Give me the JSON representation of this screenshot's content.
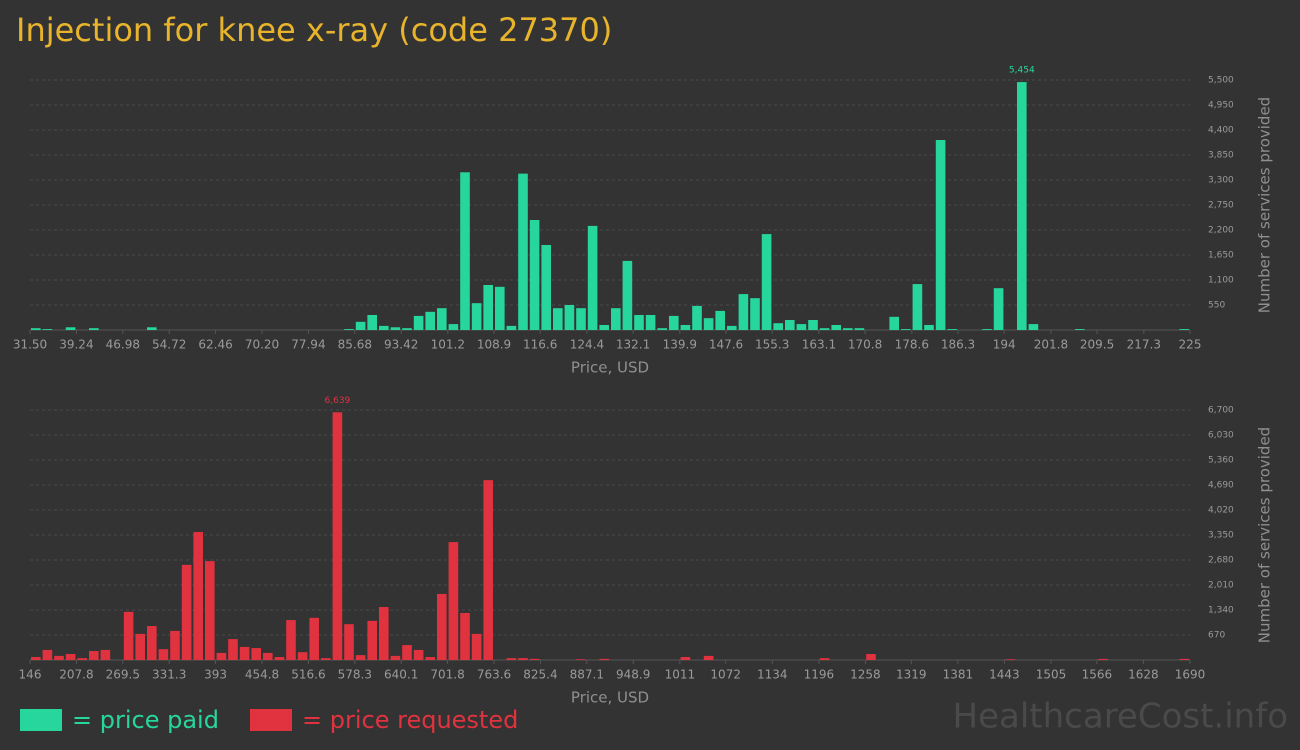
{
  "title": "Injection for knee x-ray (code 27370)",
  "watermark": "HealthcareCost.info",
  "chart_data": [
    {
      "type": "histogram",
      "x_label": "Price, USD",
      "y_label": "Number of services provided",
      "grid": true,
      "bins": [
        31.5,
        33.435,
        35.37,
        37.305,
        39.24,
        41.175,
        43.11,
        45.045,
        46.98,
        48.915,
        50.85,
        52.785,
        54.72,
        56.655,
        58.59,
        60.525,
        62.46,
        64.395,
        66.33,
        68.265,
        70.2,
        72.135,
        74.07,
        76.005,
        77.94,
        79.875,
        81.81,
        83.745,
        85.68,
        87.615,
        89.55,
        91.485,
        93.42,
        95.355,
        97.29,
        99.225,
        101.16,
        103.095,
        105.03,
        106.965,
        108.9,
        110.835,
        112.77,
        114.705,
        116.64,
        118.575,
        120.51,
        122.445,
        124.38,
        126.315,
        128.25,
        130.185,
        132.12,
        134.055,
        135.99,
        137.925,
        139.86,
        141.795,
        143.73,
        145.665,
        147.6,
        149.535,
        151.47,
        153.405,
        155.34,
        157.275,
        159.21,
        161.145,
        163.08,
        165.015,
        166.95,
        168.885,
        170.82,
        172.755,
        174.69,
        176.625,
        178.56,
        180.495,
        182.43,
        184.365,
        186.3,
        188.235,
        190.17,
        192.105,
        194.04,
        195.975,
        197.91,
        199.845,
        201.78,
        203.715,
        205.65,
        207.585,
        209.52,
        211.455,
        213.39,
        215.325,
        217.26,
        219.195,
        221.13,
        223.065,
        225
      ],
      "xlim": [
        31.5,
        225
      ],
      "xticks": [
        {
          "value": 31.5,
          "label": "31.50"
        },
        39.24,
        46.98,
        54.72,
        62.46,
        {
          "value": 70.2,
          "label": "70.20"
        },
        77.94,
        85.68,
        93.42,
        101.2,
        108.9,
        116.6,
        124.4,
        132.1,
        139.9,
        147.6,
        155.3,
        163.1,
        170.8,
        178.6,
        186.3,
        194,
        201.8,
        209.5,
        217.3,
        225
      ],
      "ylim": [
        0,
        5500
      ],
      "yticks": [
        550,
        {
          "value": 1100,
          "label": "1,100"
        },
        {
          "value": 1650,
          "label": "1,650"
        },
        {
          "value": 2200,
          "label": "2,200"
        },
        {
          "value": 2750,
          "label": "2,750"
        },
        {
          "value": 3300,
          "label": "3,300"
        },
        {
          "value": 3850,
          "label": "3,850"
        },
        {
          "value": 4400,
          "label": "4,400"
        },
        {
          "value": 4950,
          "label": "4,950"
        },
        {
          "value": 5500,
          "label": "5,500"
        }
      ],
      "series": [
        {
          "name": "= price paid",
          "color": "#27d69d",
          "values": [
            40,
            20,
            0,
            60,
            0,
            40,
            0,
            0,
            0,
            0,
            60,
            0,
            0,
            0,
            0,
            0,
            0,
            0,
            0,
            0,
            0,
            0,
            0,
            0,
            0,
            0,
            0,
            20,
            180,
            330,
            90,
            60,
            40,
            310,
            400,
            480,
            130,
            3470,
            590,
            990,
            950,
            90,
            3440,
            2420,
            1870,
            480,
            550,
            480,
            2290,
            110,
            480,
            1520,
            330,
            330,
            40,
            310,
            110,
            530,
            260,
            420,
            90,
            790,
            700,
            2110,
            150,
            220,
            130,
            220,
            40,
            110,
            40,
            40,
            0,
            0,
            290,
            20,
            1010,
            110,
            4180,
            20,
            0,
            0,
            20,
            920,
            0,
            5454,
            130,
            0,
            0,
            0,
            20,
            0,
            0,
            0,
            0,
            0,
            0,
            0,
            0,
            20
          ],
          "value_labels": [
            null,
            null,
            null,
            null,
            null,
            null,
            null,
            null,
            null,
            null,
            null,
            null,
            null,
            null,
            null,
            null,
            null,
            null,
            null,
            null,
            null,
            null,
            null,
            null,
            null,
            null,
            null,
            null,
            null,
            null,
            null,
            null,
            null,
            null,
            null,
            null,
            null,
            null,
            null,
            null,
            null,
            null,
            null,
            null,
            null,
            null,
            null,
            null,
            null,
            null,
            null,
            null,
            null,
            null,
            null,
            null,
            null,
            null,
            null,
            null,
            null,
            null,
            null,
            null,
            null,
            null,
            null,
            null,
            null,
            null,
            null,
            null,
            null,
            null,
            null,
            null,
            null,
            null,
            null,
            null,
            null,
            null,
            null,
            null,
            null,
            "5,454",
            null,
            null,
            null,
            null,
            null,
            null,
            null,
            null,
            null,
            null,
            null,
            null,
            null,
            null
          ]
        }
      ]
    },
    {
      "type": "histogram",
      "x_label": "Price, USD",
      "y_label": "Number of services provided",
      "grid": true,
      "bins": [
        146,
        161.44,
        176.88,
        192.32,
        207.76,
        223.2,
        238.64,
        254.08,
        269.52,
        284.96,
        300.4,
        315.84,
        331.28,
        346.72,
        362.16,
        377.6,
        393.04,
        408.48,
        423.92,
        439.36,
        454.8,
        470.24,
        485.68,
        501.12,
        516.56,
        532,
        547.44,
        562.88,
        578.32,
        593.76,
        609.2,
        624.64,
        640.08,
        655.52,
        670.96,
        686.4,
        701.84,
        717.28,
        732.72,
        748.16,
        763.6,
        779.04,
        794.48,
        809.92,
        825.36,
        840.8,
        856.24,
        871.68,
        887.12,
        902.56,
        918,
        933.44,
        948.88,
        964.32,
        979.76,
        995.2,
        1010.64,
        1026.08,
        1041.52,
        1056.96,
        1072.4,
        1087.84,
        1103.28,
        1118.72,
        1134.16,
        1149.6,
        1165.04,
        1180.48,
        1195.92,
        1211.36,
        1226.8,
        1242.24,
        1257.68,
        1273.12,
        1288.56,
        1304,
        1319.44,
        1334.88,
        1350.32,
        1365.76,
        1381.2,
        1396.64,
        1412.08,
        1427.52,
        1442.96,
        1458.4,
        1473.84,
        1489.28,
        1504.72,
        1520.16,
        1535.6,
        1551.04,
        1566.48,
        1581.92,
        1597.36,
        1612.8,
        1628.24,
        1643.68,
        1659.12,
        1674.56,
        1690
      ],
      "xlim": [
        146,
        1690
      ],
      "xticks": [
        146,
        207.8,
        269.5,
        331.3,
        393,
        454.8,
        516.6,
        578.3,
        640.1,
        701.8,
        763.6,
        825.4,
        887.1,
        948.9,
        1011,
        1072,
        1134,
        1196,
        1258,
        1319,
        1381,
        1443,
        1505,
        1566,
        1628,
        1690
      ],
      "ylim": [
        0,
        6700
      ],
      "yticks": [
        670,
        {
          "value": 1340,
          "label": "1,340"
        },
        {
          "value": 2010,
          "label": "2,010"
        },
        {
          "value": 2680,
          "label": "2,680"
        },
        {
          "value": 3350,
          "label": "3,350"
        },
        {
          "value": 4020,
          "label": "4,020"
        },
        {
          "value": 4690,
          "label": "4,690"
        },
        {
          "value": 5360,
          "label": "5,360"
        },
        {
          "value": 6030,
          "label": "6,030"
        },
        {
          "value": 6700,
          "label": "6,700"
        }
      ],
      "series": [
        {
          "name": "= price requested",
          "color": "#e0323f",
          "values": [
            80,
            270,
            110,
            160,
            50,
            240,
            270,
            0,
            1290,
            700,
            910,
            290,
            780,
            2550,
            3430,
            2650,
            190,
            560,
            350,
            320,
            190,
            80,
            1070,
            210,
            1130,
            50,
            6639,
            960,
            130,
            1050,
            1420,
            110,
            400,
            270,
            80,
            1770,
            3160,
            1260,
            700,
            4820,
            0,
            50,
            50,
            30,
            0,
            0,
            0,
            20,
            0,
            30,
            0,
            0,
            0,
            0,
            0,
            0,
            80,
            0,
            110,
            0,
            0,
            0,
            0,
            0,
            0,
            0,
            0,
            0,
            50,
            0,
            0,
            0,
            160,
            0,
            0,
            0,
            0,
            0,
            0,
            0,
            0,
            0,
            0,
            0,
            20,
            0,
            0,
            0,
            0,
            0,
            0,
            0,
            30,
            0,
            0,
            0,
            0,
            0,
            0,
            30
          ],
          "value_labels": [
            null,
            null,
            null,
            null,
            null,
            null,
            null,
            null,
            null,
            null,
            null,
            null,
            null,
            null,
            null,
            null,
            null,
            null,
            null,
            null,
            null,
            null,
            null,
            null,
            null,
            null,
            "6,639",
            null,
            null,
            null,
            null,
            null,
            null,
            null,
            null,
            null,
            null,
            null,
            null,
            null,
            null,
            null,
            null,
            null,
            null,
            null,
            null,
            null,
            null,
            null,
            null,
            null,
            null,
            null,
            null,
            null,
            null,
            null,
            null,
            null,
            null,
            null,
            null,
            null,
            null,
            null,
            null,
            null,
            null,
            null,
            null,
            null,
            null,
            null,
            null,
            null,
            null,
            null,
            null,
            null,
            null,
            null,
            null,
            null,
            null,
            null,
            null,
            null,
            null,
            null,
            null,
            null,
            null,
            null,
            null,
            null,
            null,
            null,
            null,
            null
          ]
        }
      ]
    }
  ]
}
